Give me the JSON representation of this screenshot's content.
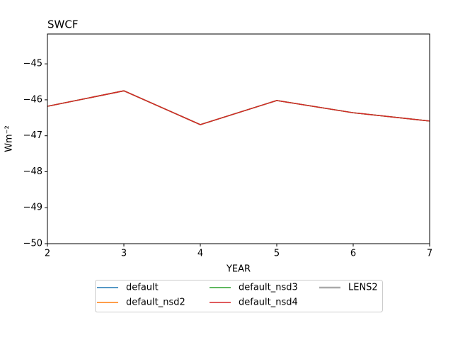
{
  "chart_data": {
    "type": "line",
    "title": "SWCF",
    "xlabel": "YEAR",
    "ylabel": "Wm⁻²",
    "x": [
      2,
      3,
      4,
      5,
      6,
      7
    ],
    "series": [
      {
        "name": "default",
        "color": "#1f77b4",
        "values": [
          -46.18,
          -45.75,
          -46.69,
          -46.02,
          -46.36,
          -46.59
        ]
      },
      {
        "name": "default_nsd2",
        "color": "#ff7f0e",
        "values": [
          -46.18,
          -45.75,
          -46.69,
          -46.02,
          -46.36,
          -46.59
        ]
      },
      {
        "name": "default_nsd3",
        "color": "#2ca02c",
        "values": [
          -46.18,
          -45.75,
          -46.69,
          -46.02,
          -46.36,
          -46.59
        ]
      },
      {
        "name": "default_nsd4",
        "color": "#d62728",
        "values": [
          -46.18,
          -45.75,
          -46.69,
          -46.02,
          -46.36,
          -46.59
        ]
      },
      {
        "name": "LENS2",
        "color": "#aaaaaa",
        "values": [
          null,
          null,
          null,
          null,
          null,
          null
        ]
      }
    ],
    "xlim": [
      2,
      7
    ],
    "xticks": [
      2,
      3,
      4,
      5,
      6,
      7
    ],
    "ylim": [
      -50,
      -44.17
    ],
    "yticks": [
      {
        "value": -50,
        "label": "−50"
      },
      {
        "value": -49,
        "label": "−49"
      },
      {
        "value": -48,
        "label": "−48"
      },
      {
        "value": -47,
        "label": "−47"
      },
      {
        "value": -46,
        "label": "−46"
      },
      {
        "value": -45,
        "label": "−45"
      }
    ],
    "legend": "lower center",
    "grid": false
  }
}
